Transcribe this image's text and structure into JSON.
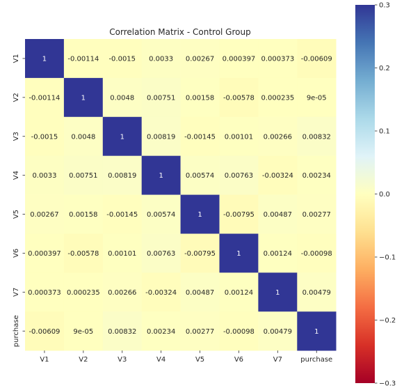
{
  "chart_data": {
    "type": "heatmap",
    "title": "Correlation Matrix - Control Group",
    "xlabel": "",
    "ylabel": "",
    "x_categories": [
      "V1",
      "V2",
      "V3",
      "V4",
      "V5",
      "V6",
      "V7",
      "purchase"
    ],
    "y_categories": [
      "V1",
      "V2",
      "V3",
      "V4",
      "V5",
      "V6",
      "V7",
      "purchase"
    ],
    "values": [
      [
        1,
        -0.00114,
        -0.0015,
        0.0033,
        0.00267,
        0.000397,
        0.000373,
        -0.00609
      ],
      [
        -0.00114,
        1,
        0.0048,
        0.00751,
        0.00158,
        -0.00578,
        0.000235,
        9e-05
      ],
      [
        -0.0015,
        0.0048,
        1,
        0.00819,
        -0.00145,
        0.00101,
        0.00266,
        0.00832
      ],
      [
        0.0033,
        0.00751,
        0.00819,
        1,
        0.00574,
        0.00763,
        -0.00324,
        0.00234
      ],
      [
        0.00267,
        0.00158,
        -0.00145,
        0.00574,
        1,
        -0.00795,
        0.00487,
        0.00277
      ],
      [
        0.000397,
        -0.00578,
        0.00101,
        0.00763,
        -0.00795,
        1,
        0.00124,
        -0.00098
      ],
      [
        0.000373,
        0.000235,
        0.00266,
        -0.00324,
        0.00487,
        0.00124,
        1,
        0.00479
      ],
      [
        -0.00609,
        9e-05,
        0.00832,
        0.00234,
        0.00277,
        -0.00098,
        0.00479,
        1
      ]
    ],
    "labels": [
      [
        "1",
        "-0.00114",
        "-0.0015",
        "0.0033",
        "0.00267",
        "0.000397",
        "0.000373",
        "-0.00609"
      ],
      [
        "-0.00114",
        "1",
        "0.0048",
        "0.00751",
        "0.00158",
        "-0.00578",
        "0.000235",
        "9e-05"
      ],
      [
        "-0.0015",
        "0.0048",
        "1",
        "0.00819",
        "-0.00145",
        "0.00101",
        "0.00266",
        "0.00832"
      ],
      [
        "0.0033",
        "0.00751",
        "0.00819",
        "1",
        "0.00574",
        "0.00763",
        "-0.00324",
        "0.00234"
      ],
      [
        "0.00267",
        "0.00158",
        "-0.00145",
        "0.00574",
        "1",
        "-0.00795",
        "0.00487",
        "0.00277"
      ],
      [
        "0.000397",
        "-0.00578",
        "0.00101",
        "0.00763",
        "-0.00795",
        "1",
        "0.00124",
        "-0.00098"
      ],
      [
        "0.000373",
        "0.000235",
        "0.00266",
        "-0.00324",
        "0.00487",
        "0.00124",
        "1",
        "0.00479"
      ],
      [
        "-0.00609",
        "9e-05",
        "0.00832",
        "0.00234",
        "0.00277",
        "-0.00098",
        "0.00479",
        "1"
      ]
    ],
    "colormap": "RdYlBu",
    "vmin": -0.3,
    "vmax": 0.3,
    "colorbar": {
      "ticks": [
        -0.3,
        -0.2,
        -0.1,
        0.0,
        0.1,
        0.2,
        0.3
      ],
      "tick_labels": [
        "−0.3",
        "−0.2",
        "−0.1",
        "0.0",
        "0.1",
        "0.2",
        "0.3"
      ],
      "placement": "right"
    },
    "colors": {
      "diagonal": "#313695",
      "near_zero": "#fefec0",
      "low": "#a50026",
      "high": "#313695"
    }
  }
}
